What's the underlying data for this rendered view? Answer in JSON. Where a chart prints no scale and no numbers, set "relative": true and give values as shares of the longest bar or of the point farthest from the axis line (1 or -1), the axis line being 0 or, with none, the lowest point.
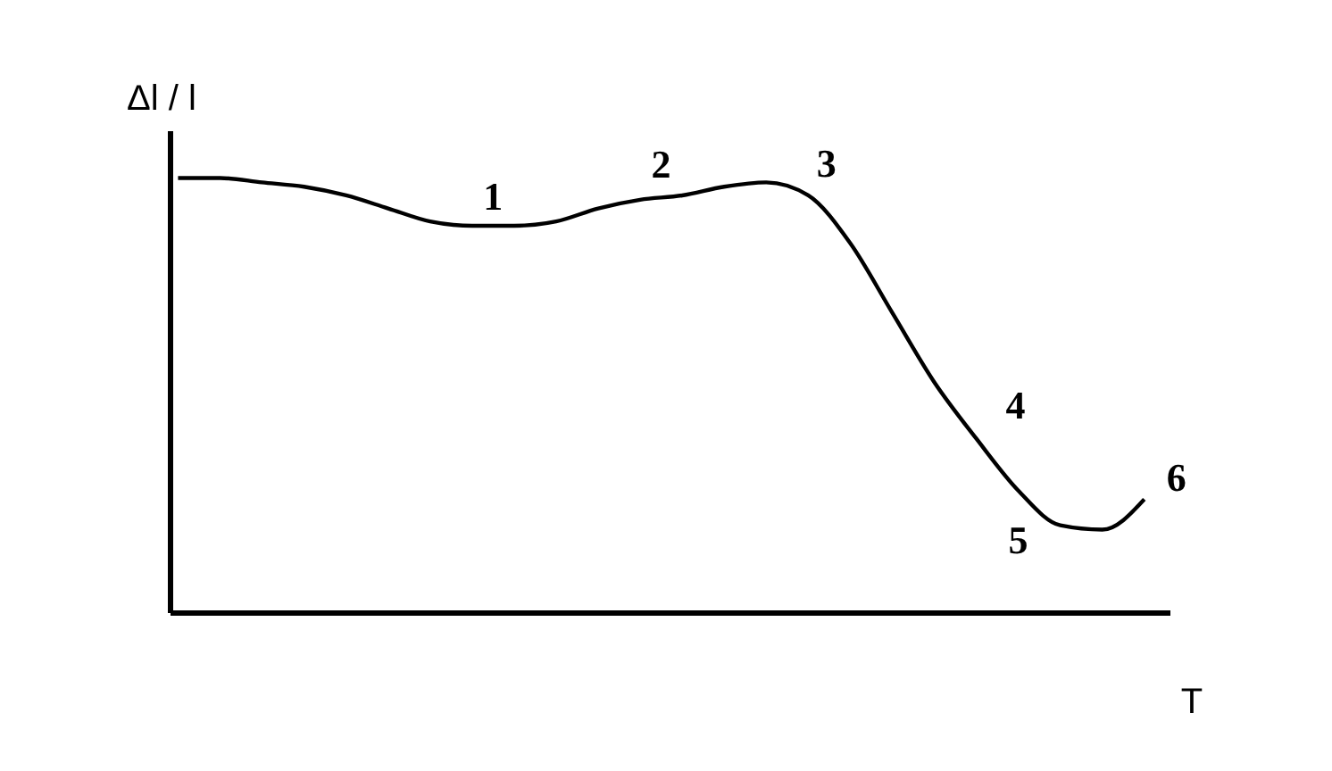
{
  "chart_data": {
    "type": "line",
    "relative": true,
    "xlabel": "T",
    "ylabel": "Δl / l",
    "color": "#000000",
    "marker": "none",
    "line_style": "solid",
    "grid": false,
    "categories": [
      null,
      null,
      null,
      null,
      null,
      null,
      null,
      null,
      null,
      null,
      null,
      null,
      null,
      null,
      null,
      null,
      null,
      null,
      null,
      null,
      null,
      null,
      null,
      null
    ],
    "values": [
      1,
      1,
      0.99,
      0.98,
      0.96,
      0.93,
      0.9,
      0.89,
      0.89,
      0.9,
      0.93,
      0.95,
      0.96,
      0.98,
      0.99,
      0.96,
      0.85,
      0.69,
      0.53,
      0.4,
      0.28,
      0.2,
      0.19,
      0.26
    ],
    "annotations": [
      "1",
      "2",
      "3",
      "4",
      "5",
      "6"
    ]
  }
}
